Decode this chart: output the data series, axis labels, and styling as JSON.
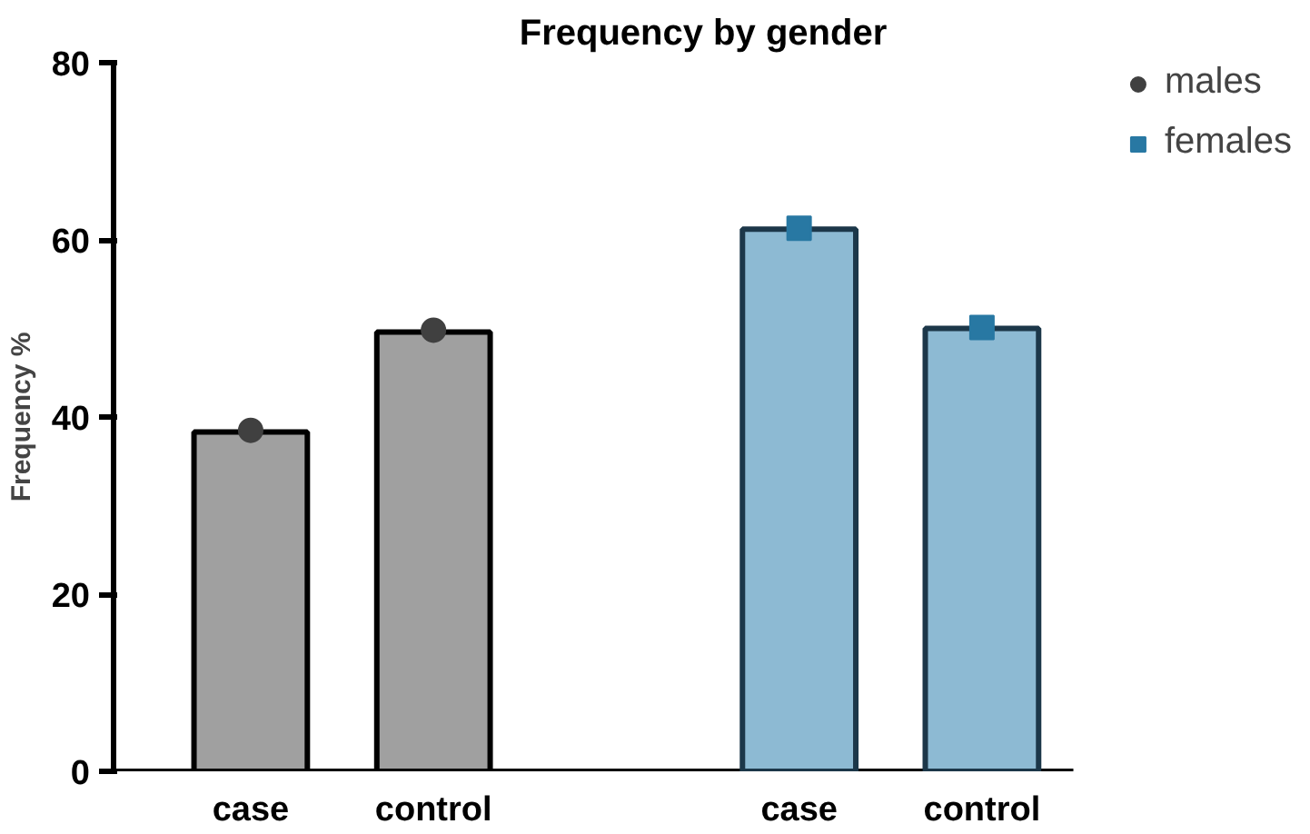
{
  "chart_data": {
    "type": "bar",
    "title": "Frequency by gender",
    "ylabel": "Frequency %",
    "categories": [
      "case",
      "control",
      null,
      "case",
      "control"
    ],
    "series": [
      {
        "color": "#a0a0a0",
        "values": [
          38.3,
          49.6,
          null,
          null,
          null
        ]
      },
      {
        "color": "#8dbad3",
        "values": [
          null,
          null,
          null,
          61.2,
          50.0
        ]
      },
      {
        "type": "scatter",
        "name": "males",
        "color": "#404040",
        "marker": "circle",
        "values": [
          38.5,
          49.8,
          null,
          null,
          null
        ]
      },
      {
        "type": "scatter",
        "name": "females",
        "color": "#2878a3",
        "marker": "square",
        "values": [
          null,
          null,
          null,
          61.3,
          50.1
        ]
      }
    ],
    "ylim": [
      0,
      80
    ],
    "yticks": [
      0,
      20,
      40,
      60,
      80
    ],
    "grid": false,
    "legend": "top right"
  }
}
